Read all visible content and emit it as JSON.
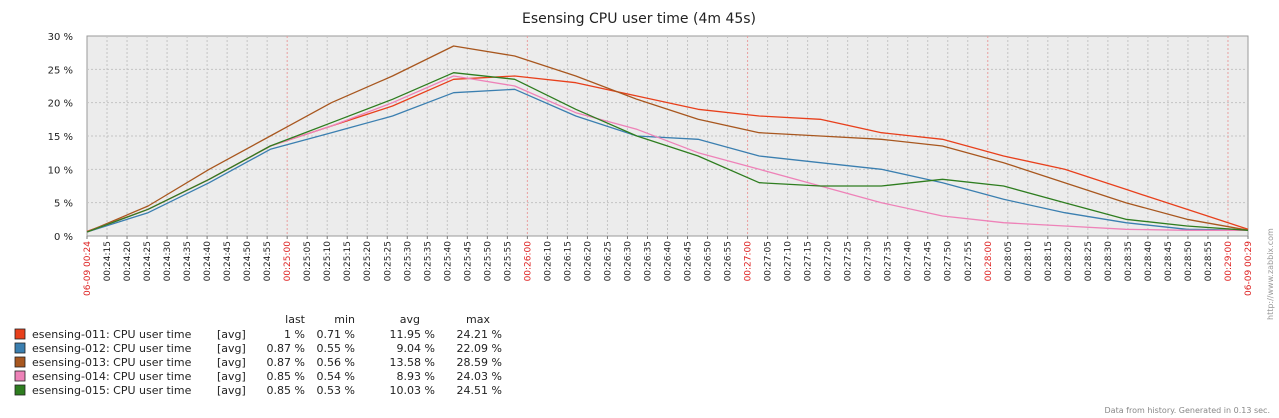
{
  "chart_data": {
    "type": "line",
    "title": "Esensing CPU user time (4m 45s)",
    "y_ticks": [
      "0 %",
      "5 %",
      "10 %",
      "15 %",
      "20 %",
      "25 %",
      "30 %"
    ],
    "ylim": [
      0,
      30
    ],
    "x_start_label": "06-09 00:24",
    "x_end_label": "06-09 00:29",
    "x_tick_labels": [
      "00:24:15",
      "00:24:20",
      "00:24:25",
      "00:24:30",
      "00:24:35",
      "00:24:40",
      "00:24:45",
      "00:24:50",
      "00:24:55",
      "00:25:00",
      "00:25:05",
      "00:25:10",
      "00:25:15",
      "00:25:20",
      "00:25:25",
      "00:25:30",
      "00:25:35",
      "00:25:40",
      "00:25:45",
      "00:25:50",
      "00:25:55",
      "00:26:00",
      "00:26:10",
      "00:26:15",
      "00:26:20",
      "00:26:25",
      "00:26:30",
      "00:26:35",
      "00:26:40",
      "00:26:45",
      "00:26:50",
      "00:26:55",
      "00:27:00",
      "00:27:05",
      "00:27:10",
      "00:27:15",
      "00:27:20",
      "00:27:25",
      "00:27:30",
      "00:27:35",
      "00:27:40",
      "00:27:45",
      "00:27:50",
      "00:27:55",
      "00:28:00",
      "00:28:05",
      "00:28:10",
      "00:28:15",
      "00:28:20",
      "00:28:25",
      "00:28:30",
      "00:28:35",
      "00:28:40",
      "00:28:45",
      "00:28:50",
      "00:28:55",
      "00:29:00"
    ],
    "major_ticks": [
      "00:25:00",
      "00:26:00",
      "00:27:00",
      "00:28:00",
      "00:29:00"
    ],
    "x_seconds": [
      0,
      15,
      30,
      45,
      60,
      75,
      90,
      105,
      120,
      135,
      150,
      165,
      180,
      195,
      210,
      225,
      240,
      255,
      270,
      285
    ],
    "grid": true,
    "legend_headers": [
      "last",
      "min",
      "avg",
      "max"
    ],
    "series": [
      {
        "name": "esensing-011: CPU user time",
        "agg": "[avg]",
        "color": "#e8401c",
        "last": "1 %",
        "min": "0.71 %",
        "avg": "11.95 %",
        "max": "24.21 %",
        "values": [
          0.7,
          4,
          8.5,
          13.5,
          16.5,
          19.5,
          23.5,
          24,
          23,
          21,
          19,
          18,
          17.5,
          15.5,
          14.5,
          12,
          10,
          7,
          4,
          1
        ]
      },
      {
        "name": "esensing-012: CPU user time",
        "agg": "[avg]",
        "color": "#3b7fb0",
        "last": "0.87 %",
        "min": "0.55 %",
        "avg": "9.04 %",
        "max": "22.09 %",
        "values": [
          0.6,
          3.5,
          8,
          13,
          15.5,
          18,
          21.5,
          22,
          18,
          15,
          14.5,
          12,
          11,
          10,
          8,
          5.5,
          3.5,
          2,
          1,
          0.87
        ]
      },
      {
        "name": "esensing-013: CPU user time",
        "agg": "[avg]",
        "color": "#a8571f",
        "last": "0.87 %",
        "min": "0.56 %",
        "avg": "13.58 %",
        "max": "28.59 %",
        "values": [
          0.6,
          4.5,
          10,
          15,
          20,
          24,
          28.5,
          27,
          24,
          20.5,
          17.5,
          15.5,
          15,
          14.5,
          13.5,
          11,
          8,
          5,
          2.5,
          0.87
        ]
      },
      {
        "name": "esensing-014: CPU user time",
        "agg": "[avg]",
        "color": "#ee82b8",
        "last": "0.85 %",
        "min": "0.54 %",
        "avg": "8.93 %",
        "max": "24.03 %",
        "values": [
          0.6,
          4,
          8.5,
          13.5,
          16.5,
          20,
          24,
          22.5,
          18.5,
          16,
          12.5,
          10,
          7.5,
          5,
          3,
          2,
          1.5,
          1,
          0.85,
          0.85
        ]
      },
      {
        "name": "esensing-015: CPU user time",
        "agg": "[avg]",
        "color": "#2e7d1f",
        "last": "0.85 %",
        "min": "0.53 %",
        "avg": "10.03 %",
        "max": "24.51 %",
        "values": [
          0.6,
          4,
          8.5,
          13.5,
          17,
          20.5,
          24.5,
          23.5,
          19,
          15,
          12,
          8,
          7.5,
          7.5,
          8.5,
          7.5,
          5,
          2.5,
          1.5,
          0.85
        ]
      }
    ]
  },
  "footer_text": "Data from history. Generated in 0.13 sec.",
  "side_text": "http://www.zabbix.com"
}
